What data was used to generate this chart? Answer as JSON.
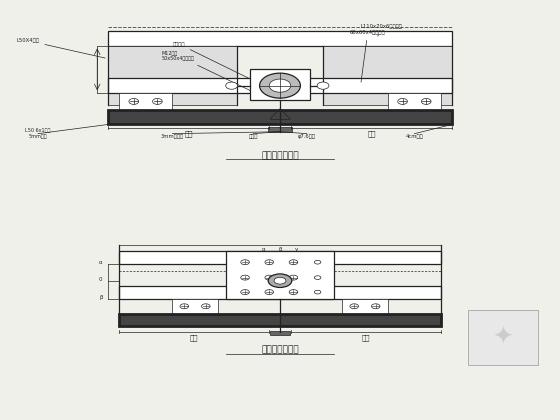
{
  "bg_color": "#f0f0eb",
  "line_color": "#222222",
  "drawing_bg": "#ffffff",
  "title1": "横向采割节点一",
  "title2": "横向采割节点二",
  "label_angle1": "L50X4角钢",
  "label_bolt": "M12螺栓",
  "label_plate": "50x50x4镀锌铁板",
  "label_angle2": "L110x70x6镀锌角铁",
  "label_tube": "60x60x4镀锌方管",
  "label_claw": "钢驳接爪",
  "label_ring": "3mm驳接环",
  "label_head": "驳接头",
  "label_cable1": "φ7.6钢索",
  "label_cable2": "4cm钢索",
  "label_left": "L50 6x1角钢\n5mm钢板",
  "watermark": "鲁班"
}
